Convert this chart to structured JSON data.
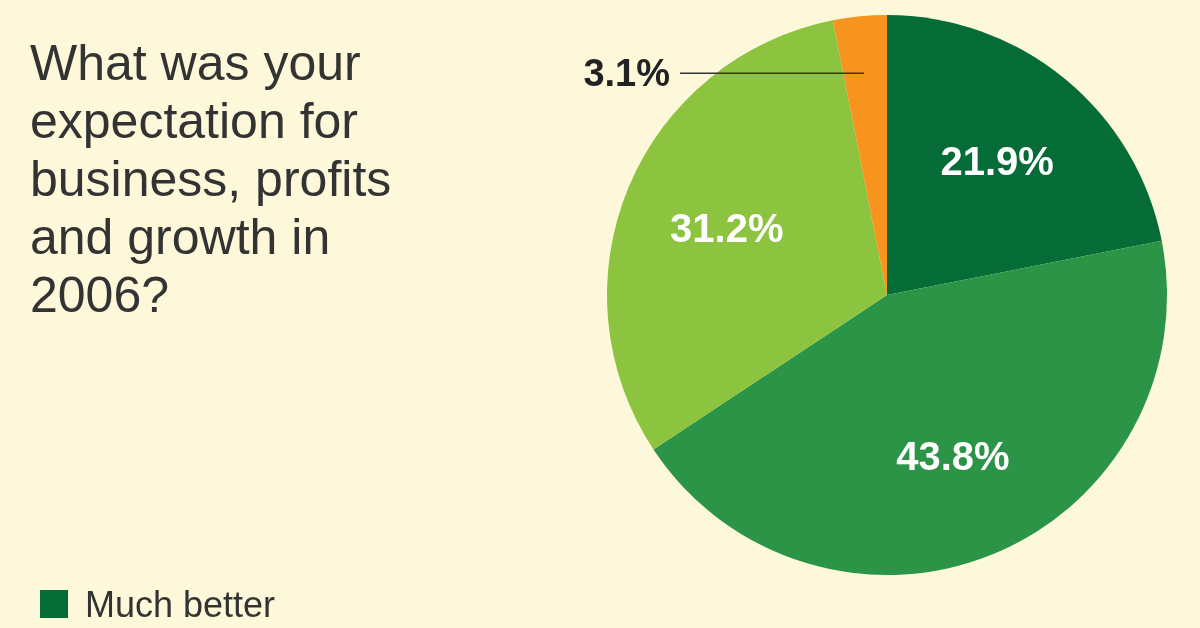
{
  "chart_data": {
    "type": "pie",
    "title": "What was your expectation for business, profits and growth in 2006?",
    "categories": [
      "Much better",
      null,
      null,
      null
    ],
    "values": [
      21.9,
      43.8,
      31.2,
      3.1
    ],
    "colors": [
      "#056b37",
      "#2b9447",
      "#8cc43f",
      "#f7941e"
    ],
    "value_labels": [
      "21.9%",
      "43.8%",
      "31.2%",
      "3.1%"
    ],
    "legend": "bottom left"
  }
}
